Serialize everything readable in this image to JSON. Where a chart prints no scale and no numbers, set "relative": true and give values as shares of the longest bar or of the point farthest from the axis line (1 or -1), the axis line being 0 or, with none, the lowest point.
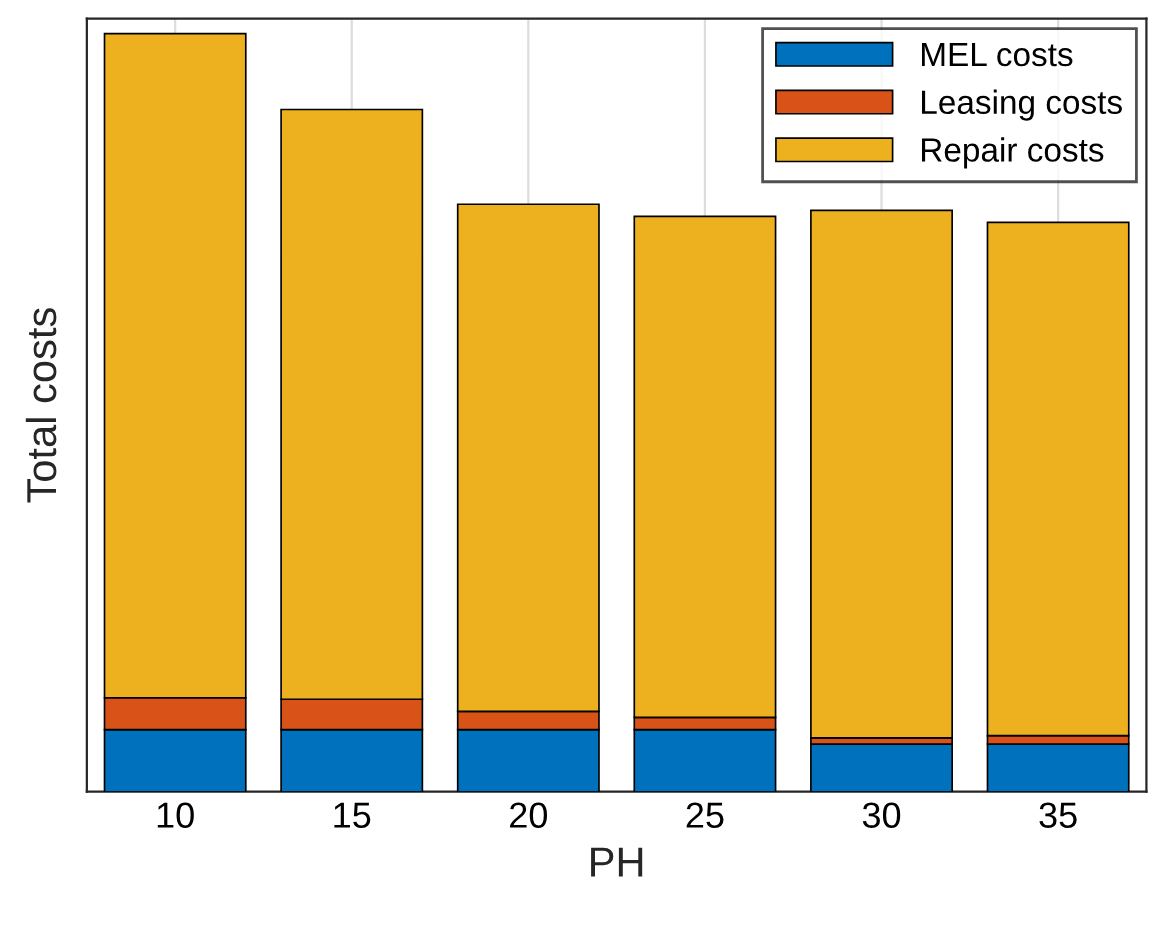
{
  "chart_data": {
    "type": "bar",
    "stacked": true,
    "relative": true,
    "xlabel": "PH",
    "ylabel": "Total costs",
    "categories": [
      "10",
      "15",
      "20",
      "25",
      "30",
      "35"
    ],
    "series": [
      {
        "name": "MEL costs",
        "color": "#0072bd",
        "values": [
          0.082,
          0.082,
          0.082,
          0.082,
          0.063,
          0.063
        ]
      },
      {
        "name": "Leasing costs",
        "color": "#d95319",
        "values": [
          0.042,
          0.04,
          0.024,
          0.016,
          0.008,
          0.011
        ]
      },
      {
        "name": "Repair costs",
        "color": "#edb120",
        "values": [
          0.876,
          0.778,
          0.669,
          0.661,
          0.696,
          0.677
        ]
      }
    ],
    "grid": "x",
    "legend": "top right",
    "tick_labels": "x"
  }
}
